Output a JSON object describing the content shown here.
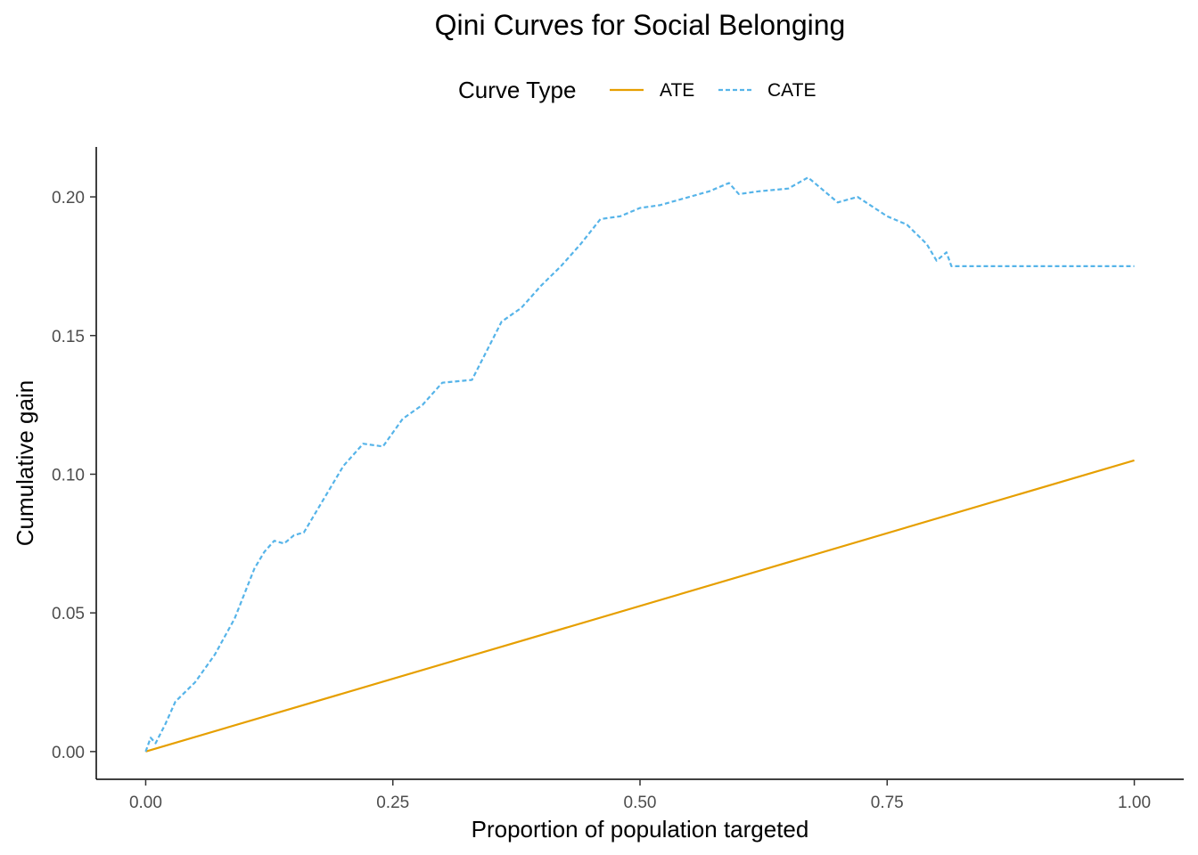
{
  "chart_data": {
    "type": "line",
    "title": "Qini Curves for Social Belonging",
    "xlabel": "Proportion of population targeted",
    "ylabel": "Cumulative gain",
    "xlim": [
      -0.05,
      1.05
    ],
    "ylim": [
      -0.01,
      0.218
    ],
    "x_ticks": [
      0.0,
      0.25,
      0.5,
      0.75,
      1.0
    ],
    "x_tick_labels": [
      "0.00",
      "0.25",
      "0.50",
      "0.75",
      "1.00"
    ],
    "y_ticks": [
      0.0,
      0.05,
      0.1,
      0.15,
      0.2
    ],
    "y_tick_labels": [
      "0.00",
      "0.05",
      "0.10",
      "0.15",
      "0.20"
    ],
    "grid": false,
    "legend": {
      "title": "Curve Type",
      "position": "top",
      "entries": [
        {
          "label": "ATE",
          "color": "#E69F00",
          "dash": "solid"
        },
        {
          "label": "CATE",
          "color": "#56B4E9",
          "dash": "dashed"
        }
      ]
    },
    "series": [
      {
        "name": "ATE",
        "color": "#E69F00",
        "dash": "solid",
        "x": [
          0.0,
          1.0
        ],
        "y": [
          0.0,
          0.105
        ]
      },
      {
        "name": "CATE",
        "color": "#56B4E9",
        "dash": "dashed",
        "x": [
          0.0,
          0.005,
          0.01,
          0.02,
          0.03,
          0.05,
          0.07,
          0.09,
          0.11,
          0.12,
          0.13,
          0.14,
          0.15,
          0.16,
          0.18,
          0.2,
          0.22,
          0.24,
          0.26,
          0.28,
          0.3,
          0.33,
          0.35,
          0.36,
          0.38,
          0.4,
          0.42,
          0.44,
          0.46,
          0.48,
          0.5,
          0.52,
          0.55,
          0.57,
          0.59,
          0.6,
          0.62,
          0.65,
          0.67,
          0.7,
          0.72,
          0.75,
          0.77,
          0.79,
          0.8,
          0.81,
          0.815,
          0.82,
          1.0
        ],
        "y": [
          0.0,
          0.005,
          0.003,
          0.01,
          0.018,
          0.025,
          0.035,
          0.048,
          0.066,
          0.072,
          0.076,
          0.075,
          0.078,
          0.079,
          0.091,
          0.103,
          0.111,
          0.11,
          0.12,
          0.125,
          0.133,
          0.134,
          0.148,
          0.155,
          0.16,
          0.168,
          0.175,
          0.183,
          0.192,
          0.193,
          0.196,
          0.197,
          0.2,
          0.202,
          0.205,
          0.201,
          0.202,
          0.203,
          0.207,
          0.198,
          0.2,
          0.193,
          0.19,
          0.183,
          0.177,
          0.18,
          0.175,
          0.175,
          0.175
        ]
      }
    ]
  }
}
